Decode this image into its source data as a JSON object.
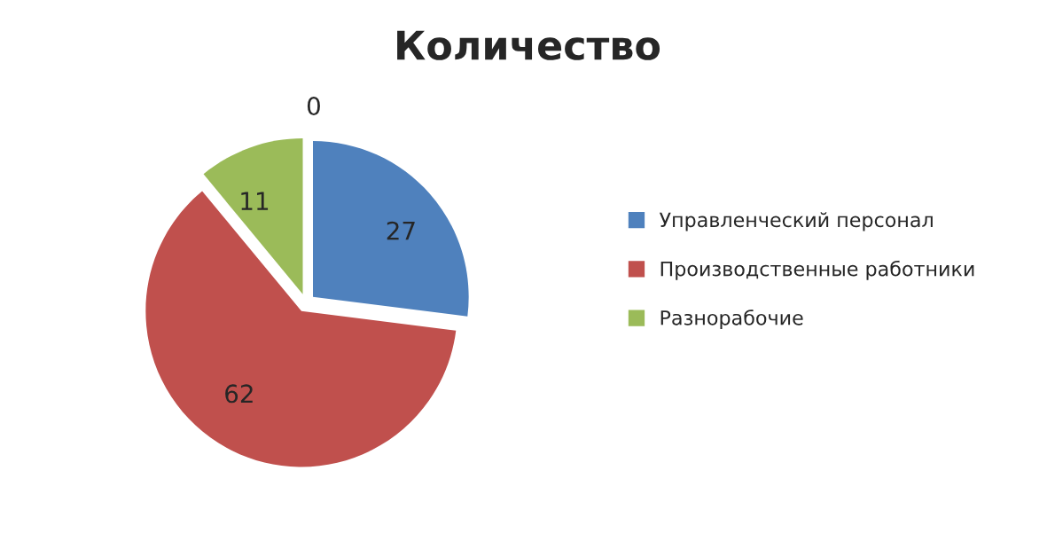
{
  "chart_data": {
    "type": "pie",
    "title": "Количество",
    "categories": [
      "Управленческий персонал",
      "Производственные работники",
      "Разнорабочие",
      null
    ],
    "values": [
      27,
      62,
      11,
      0
    ],
    "colors": [
      "#4f81bd",
      "#c0504d",
      "#9bbb59",
      "#8064a2"
    ],
    "value_labels": [
      "27",
      "62",
      "11",
      "0"
    ],
    "legend": "right"
  }
}
